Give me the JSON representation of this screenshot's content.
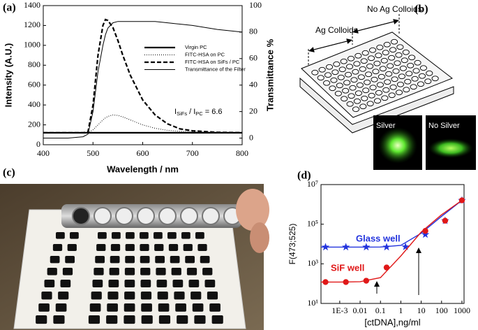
{
  "chart_data": [
    {
      "type": "line",
      "label": "(a)",
      "xlabel": "Wavelength / nm",
      "ylabel": "Intensity (A.U.)",
      "y2label": "Transmittance %",
      "xlim": [
        400,
        800
      ],
      "xticks": [
        400,
        500,
        600,
        700,
        800
      ],
      "ylim": [
        0,
        1400
      ],
      "yticks": [
        0,
        200,
        400,
        600,
        800,
        1000,
        1200,
        1400
      ],
      "y2lim": [
        -5,
        100
      ],
      "y2ticks": [
        0,
        20,
        40,
        60,
        80,
        100
      ],
      "legend": "upper right",
      "x": [
        400,
        450,
        480,
        490,
        500,
        510,
        520,
        525,
        530,
        540,
        550,
        560,
        575,
        600,
        625,
        650,
        675,
        700,
        750,
        800
      ],
      "series": [
        {
          "name": "Virgin PC",
          "color": "#000000",
          "style": "thick",
          "values": [
            120,
            120,
            120,
            120,
            120,
            120,
            120,
            120,
            120,
            120,
            120,
            120,
            120,
            120,
            120,
            120,
            120,
            120,
            120,
            120
          ]
        },
        {
          "name": "FITC-HSA on PC",
          "color": "#000000",
          "style": "dotted",
          "values": [
            120,
            120,
            120,
            122,
            150,
            200,
            250,
            270,
            285,
            300,
            295,
            280,
            250,
            200,
            165,
            145,
            135,
            130,
            125,
            122
          ]
        },
        {
          "name": "FITC-HSA on SiFs / PC",
          "color": "#000000",
          "style": "dashed",
          "values": [
            120,
            120,
            120,
            130,
            400,
            900,
            1200,
            1260,
            1250,
            1180,
            1050,
            900,
            700,
            450,
            300,
            210,
            160,
            140,
            125,
            122
          ]
        },
        {
          "name": "Transmittance of the Filter",
          "color": "#000000",
          "style": "thin",
          "axis": "y2",
          "values": [
            0,
            0,
            1,
            3,
            20,
            50,
            70,
            78,
            83,
            87,
            88,
            88,
            88,
            88,
            88,
            87,
            86,
            85,
            82,
            80
          ]
        }
      ],
      "annotation": {
        "parts": [
          "I",
          "SiFs",
          " / I",
          "PC",
          " = 6.6"
        ]
      }
    },
    {
      "type": "scatter",
      "label": "(d)",
      "xlabel": "[ctDNA],ng/ml",
      "ylabel": "F(473;525)",
      "xscale": "log",
      "yscale": "log",
      "xlim": [
        0.00012,
        1270
      ],
      "xticks": [
        {
          "value": 0.001,
          "label": "1E-3"
        },
        0.01,
        0.1,
        1,
        10,
        100,
        1000
      ],
      "ylim": [
        10,
        10000000
      ],
      "yticks": [
        {
          "value": 10,
          "label": "10¹"
        },
        {
          "value": 1000,
          "label": "10³"
        },
        {
          "value": 100000,
          "label": "10⁵"
        },
        {
          "value": 10000000,
          "label": "10⁷"
        }
      ],
      "series": [
        {
          "name": "Glass well",
          "color": "#2233dd",
          "marker": "star",
          "x": [
            0.0002,
            0.002,
            0.02,
            0.2,
            1.7,
            16,
            150,
            1000
          ],
          "values": [
            7000,
            7000,
            7000,
            7000,
            7200,
            30000,
            150000,
            1600000
          ],
          "fit_x": [
            0.00012,
            0.001,
            0.01,
            0.1,
            1,
            10,
            100,
            1000,
            1270
          ],
          "fit": [
            7000,
            7000,
            7000,
            7050,
            8500,
            35000,
            250000,
            1600000,
            2000000
          ]
        },
        {
          "name": "SiF well",
          "color": "#e01818",
          "marker": "circle",
          "x": [
            0.0002,
            0.002,
            0.02,
            0.2,
            16,
            150,
            1000
          ],
          "values": [
            120,
            120,
            140,
            650,
            46000,
            150000,
            1600000
          ],
          "fit_x": [
            0.00012,
            0.001,
            0.01,
            0.1,
            1,
            10,
            100,
            1000,
            1270
          ],
          "fit": [
            120,
            120,
            125,
            200,
            2500,
            40000,
            300000,
            1600000,
            2000000
          ]
        }
      ]
    }
  ],
  "panel_b": {
    "label": "(b)",
    "annotations": [
      "Ag Colloids",
      "No Ag Colloids"
    ],
    "photo_labels": [
      "Silver",
      "No Silver"
    ]
  },
  "panel_c": {
    "label": "(c)"
  }
}
